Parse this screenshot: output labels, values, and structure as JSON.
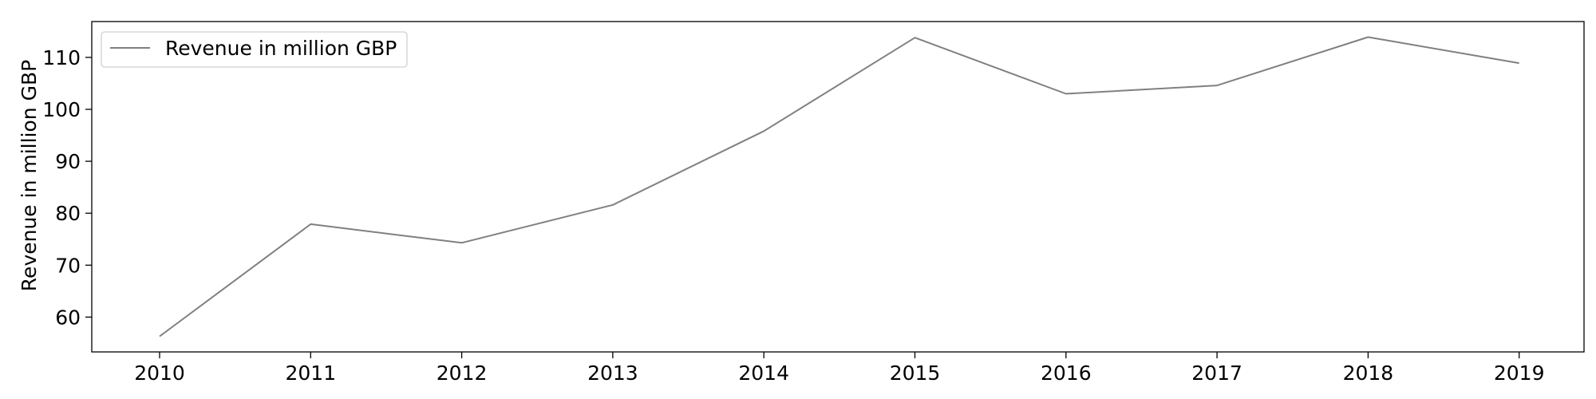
{
  "chart_data": {
    "type": "line",
    "title": "",
    "xlabel": "",
    "ylabel": "Revenue in million GBP",
    "x": [
      "2010",
      "2011",
      "2012",
      "2013",
      "2014",
      "2015",
      "2016",
      "2017",
      "2018",
      "2019"
    ],
    "series": [
      {
        "name": "Revenue in million GBP",
        "values": [
          56.3,
          77.9,
          74.3,
          81.6,
          95.8,
          113.8,
          103.0,
          104.6,
          113.9,
          108.9
        ],
        "color": "#808080"
      }
    ],
    "yticks": [
      60,
      70,
      80,
      90,
      100,
      110
    ],
    "ylim": [
      53.3,
      116.9
    ],
    "grid": false,
    "legend_position": "top-left"
  }
}
